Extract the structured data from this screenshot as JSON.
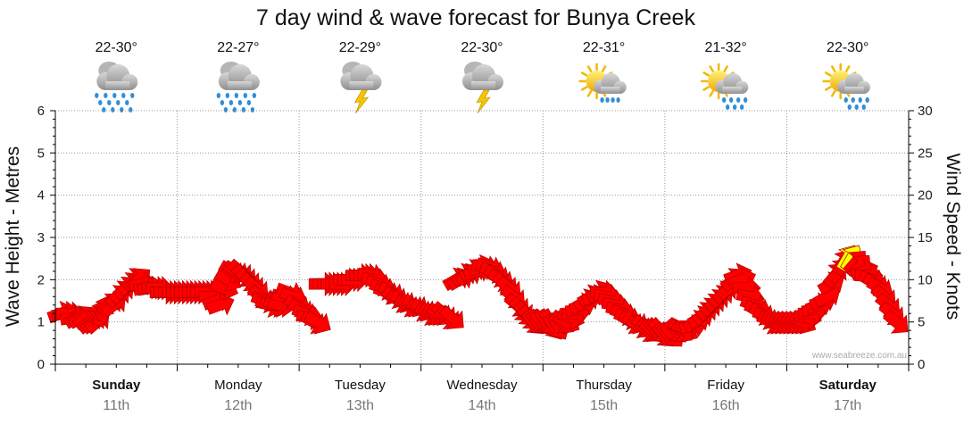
{
  "title": "7 day wind & wave forecast for Bunya Creek",
  "watermark": "www.seabreeze.com.au",
  "colors": {
    "arrow": "#ff0000",
    "arrow_highlight": "#ffff00",
    "arrow_stroke": "#b30000",
    "grid": "#999999"
  },
  "days": [
    {
      "name": "Sunday",
      "date": "11th",
      "temp": "22-30°",
      "icon": "rain-cloud-icon",
      "bold": true
    },
    {
      "name": "Monday",
      "date": "12th",
      "temp": "22-27°",
      "icon": "rain-cloud-icon",
      "bold": false
    },
    {
      "name": "Tuesday",
      "date": "13th",
      "temp": "22-29°",
      "icon": "storm-cloud-icon",
      "bold": false
    },
    {
      "name": "Wednesday",
      "date": "14th",
      "temp": "22-30°",
      "icon": "storm-cloud-icon",
      "bold": false
    },
    {
      "name": "Thursday",
      "date": "15th",
      "temp": "22-31°",
      "icon": "sun-cloud-drizzle-icon",
      "bold": false
    },
    {
      "name": "Friday",
      "date": "16th",
      "temp": "21-32°",
      "icon": "sun-cloud-rain-icon",
      "bold": false
    },
    {
      "name": "Saturday",
      "date": "17th",
      "temp": "22-30°",
      "icon": "sun-cloud-rain-icon",
      "bold": true
    }
  ],
  "chart_data": {
    "type": "line",
    "title": "7 day wind & wave forecast for Bunya Creek",
    "ylabel_left": "Wave Height - Metres",
    "ylabel_right": "Wind Speed - Knots",
    "ylim_left": [
      0,
      6
    ],
    "ylim_right": [
      0,
      30
    ],
    "yticks_left": [
      "0",
      "1",
      "2",
      "3",
      "4",
      "5",
      "6"
    ],
    "yticks_right": [
      "0",
      "5",
      "10",
      "15",
      "20",
      "25",
      "30"
    ],
    "grid": true,
    "series": [
      {
        "units": "knots",
        "values": [
          6,
          6,
          6,
          5.5,
          5.5,
          5.5,
          5.5,
          5,
          5,
          5,
          6,
          6.5,
          7,
          7,
          8,
          8.5,
          9,
          9.5,
          10,
          10,
          9.5,
          9,
          9,
          9,
          9,
          8.5,
          8.5,
          8.5,
          8.5,
          8.5,
          8.5,
          8.5,
          8.5,
          8.5,
          8.5,
          8.5,
          8.5,
          8,
          7.5,
          7,
          9,
          10,
          11,
          11,
          11,
          10.5,
          10,
          9.5,
          9,
          8,
          7.5,
          7,
          7,
          7,
          7,
          8,
          8.5,
          8,
          7,
          6.5,
          6,
          5.5,
          5,
          5,
          9.5,
          9.5,
          9.5,
          9.5,
          9.5,
          9.5,
          10,
          10,
          10,
          10.5,
          10.5,
          10.5,
          10.5,
          10,
          9.5,
          9,
          8.5,
          8.5,
          8,
          7.5,
          7.5,
          7,
          7,
          7,
          6.5,
          6.5,
          6,
          6,
          6,
          6,
          6,
          5.5,
          5.5,
          10,
          10,
          10.5,
          10.5,
          11,
          11,
          11.5,
          11.5,
          11.5,
          11,
          10.5,
          10,
          9.5,
          9,
          8,
          7,
          6.5,
          6,
          5.5,
          5,
          5,
          5,
          5,
          5,
          4.5,
          4.5,
          5,
          5,
          5.5,
          6,
          6.5,
          7,
          7.5,
          8,
          8,
          8.5,
          8.5,
          8,
          7.5,
          7,
          6.5,
          6,
          5.5,
          5,
          5,
          4.5,
          4.5,
          4,
          4,
          4,
          4,
          3.5,
          3.5,
          3.5,
          4,
          4,
          4,
          4.5,
          4.5,
          5,
          5.5,
          6,
          6.5,
          7,
          7.5,
          8,
          8.5,
          9,
          10,
          10.5,
          10,
          9,
          8,
          7,
          6.5,
          6,
          5.5,
          5,
          5,
          5,
          5,
          5,
          5,
          5,
          5,
          5,
          5.5,
          6,
          6.5,
          7,
          7.5,
          8,
          9.5,
          10.5,
          11,
          12,
          12.5,
          12.5,
          12,
          11.5,
          11,
          10.5,
          10,
          9.5,
          9,
          8,
          7,
          6,
          5
        ]
      },
      {
        "units": "degrees-from",
        "values": [
          250,
          260,
          270,
          260,
          240,
          240,
          230,
          230,
          230,
          230,
          200,
          200,
          230,
          230,
          230,
          230,
          230,
          230,
          230,
          230,
          260,
          260,
          260,
          270,
          270,
          270,
          270,
          270,
          270,
          270,
          270,
          270,
          270,
          270,
          270,
          270,
          270,
          270,
          250,
          250,
          290,
          300,
          300,
          300,
          310,
          310,
          310,
          310,
          310,
          310,
          290,
          290,
          280,
          290,
          280,
          280,
          290,
          290,
          300,
          300,
          290,
          280,
          300,
          300,
          270,
          270,
          270,
          270,
          270,
          270,
          270,
          270,
          270,
          270,
          270,
          270,
          280,
          280,
          290,
          290,
          290,
          300,
          300,
          300,
          300,
          300,
          300,
          300,
          300,
          300,
          300,
          300,
          300,
          300,
          310,
          310,
          310,
          240,
          240,
          240,
          240,
          240,
          250,
          250,
          280,
          290,
          290,
          300,
          300,
          310,
          310,
          310,
          310,
          320,
          320,
          320,
          320,
          320,
          320,
          330,
          330,
          330,
          330,
          310,
          300,
          290,
          270,
          260,
          250,
          240,
          240,
          250,
          240,
          270,
          280,
          280,
          280,
          280,
          290,
          290,
          300,
          300,
          300,
          310,
          310,
          310,
          320,
          320,
          320,
          320,
          320,
          320,
          310,
          300,
          270,
          260,
          240,
          240,
          230,
          230,
          230,
          230,
          230,
          230,
          230,
          230,
          250,
          250,
          270,
          280,
          290,
          290,
          300,
          300,
          300,
          300,
          300,
          300,
          300,
          300,
          300,
          300,
          300,
          280,
          270,
          260,
          250,
          250,
          240,
          240,
          220,
          220,
          210,
          210,
          210,
          220,
          220,
          250,
          270,
          290,
          300,
          300,
          310,
          310,
          310,
          310
        ]
      }
    ],
    "highlight_range": [
      13.5,
      14
    ],
    "x": {
      "categories": [
        "Sunday",
        "Monday",
        "Tuesday",
        "Wednesday",
        "Thursday",
        "Friday",
        "Saturday"
      ]
    }
  }
}
